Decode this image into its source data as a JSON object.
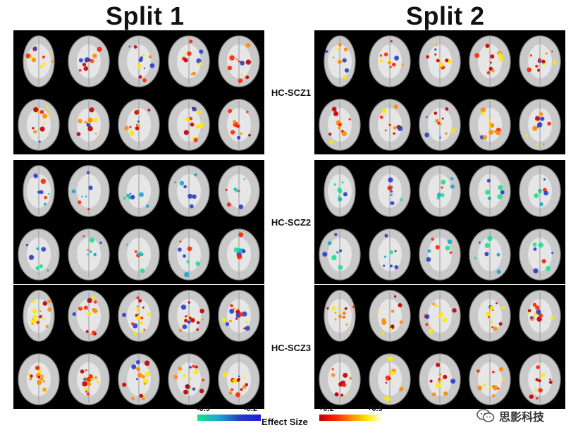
{
  "titles": {
    "split1": "Split 1",
    "split2": "Split 2"
  },
  "row_labels": [
    "HC-SCZ1",
    "HC-SCZ2",
    "HC-SCZ3"
  ],
  "colorbar": {
    "neg_min": "-0.9",
    "neg_max": "-0.2",
    "label": "Effect Size",
    "pos_min": "+0.2",
    "pos_max": "+0.9",
    "neg_colors": [
      "#19e28c",
      "#1aa8c9",
      "#2a3cc8",
      "#1b1de6"
    ],
    "pos_colors": [
      "#c00000",
      "#ff2200",
      "#ff8a00",
      "#ffe800",
      "#ffffff"
    ]
  },
  "watermark": {
    "text": "思影科技",
    "icon": "wechat-logo-icon"
  },
  "panels": [
    {
      "split": 1,
      "comparison": "HC-SCZ1",
      "dominant": "warm"
    },
    {
      "split": 2,
      "comparison": "HC-SCZ1",
      "dominant": "warm"
    },
    {
      "split": 1,
      "comparison": "HC-SCZ2",
      "dominant": "cool"
    },
    {
      "split": 2,
      "comparison": "HC-SCZ2",
      "dominant": "cool"
    },
    {
      "split": 1,
      "comparison": "HC-SCZ3",
      "dominant": "warm-strong"
    },
    {
      "split": 2,
      "comparison": "HC-SCZ3",
      "dominant": "warm"
    }
  ]
}
